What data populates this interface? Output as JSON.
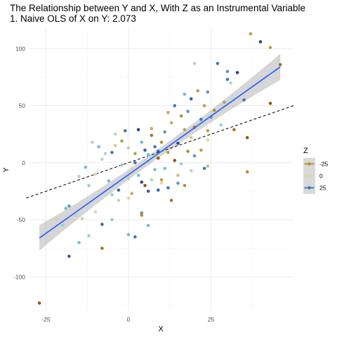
{
  "chart_data": {
    "type": "scatter",
    "title": "The Relationship between Y and X, With Z as an Instrumental Variable",
    "subtitle": "1. Naive OLS of  X on Y: 2.073",
    "xlabel": "X",
    "ylabel": "Y",
    "xlim": [
      -30,
      50
    ],
    "ylim": [
      -130,
      118
    ],
    "x_ticks": [
      -25,
      0,
      25
    ],
    "y_ticks": [
      -100,
      -50,
      0,
      50,
      100
    ],
    "grid": true,
    "legend": {
      "title": "Z",
      "placement": "right",
      "entries": [
        {
          "label": "-25",
          "color": "#b8902a"
        },
        {
          "label": "0",
          "color": "#dcd8a0"
        },
        {
          "label": "25",
          "color": "#3b78b4"
        }
      ]
    },
    "color_scale": {
      "low": -40,
      "high": 40
    },
    "fit_line": {
      "x": [
        -27,
        46
      ],
      "y": [
        -66,
        84
      ],
      "color": "#3366ff"
    },
    "naive_line": {
      "x": [
        -31,
        50
      ],
      "y": [
        -31,
        50
      ],
      "color": "#000000",
      "style": "dashed"
    },
    "points": [
      {
        "x": -27,
        "y": -123,
        "z": -35
      },
      {
        "x": -18,
        "y": -82,
        "z": 30
      },
      {
        "x": -8,
        "y": -75,
        "z": -30
      },
      {
        "x": -15,
        "y": -70,
        "z": 15
      },
      {
        "x": -12,
        "y": -64,
        "z": 10
      },
      {
        "x": -20,
        "y": -55,
        "z": 10
      },
      {
        "x": -18,
        "y": -38,
        "z": 20
      },
      {
        "x": -16,
        "y": -46,
        "z": 5
      },
      {
        "x": -14,
        "y": -49,
        "z": 5
      },
      {
        "x": -10,
        "y": -43,
        "z": 0
      },
      {
        "x": -8,
        "y": -54,
        "z": 28
      },
      {
        "x": -5,
        "y": -50,
        "z": 10
      },
      {
        "x": 0,
        "y": -63,
        "z": 15
      },
      {
        "x": 2,
        "y": -65,
        "z": 25
      },
      {
        "x": -3,
        "y": -33,
        "z": 5
      },
      {
        "x": 0,
        "y": -31,
        "z": 0
      },
      {
        "x": 4,
        "y": -44,
        "z": 20
      },
      {
        "x": 4,
        "y": -46,
        "z": -25
      },
      {
        "x": 6,
        "y": -55,
        "z": 15
      },
      {
        "x": -15,
        "y": -12,
        "z": 5
      },
      {
        "x": -12,
        "y": -20,
        "z": 10
      },
      {
        "x": -10,
        "y": -10,
        "z": 0
      },
      {
        "x": -8,
        "y": 3,
        "z": 5
      },
      {
        "x": -6,
        "y": -16,
        "z": 15
      },
      {
        "x": -5,
        "y": -28,
        "z": 10
      },
      {
        "x": -3,
        "y": -24,
        "z": 28
      },
      {
        "x": -2,
        "y": -2,
        "z": 10
      },
      {
        "x": 0,
        "y": -14,
        "z": 5
      },
      {
        "x": 1,
        "y": -27,
        "z": -15
      },
      {
        "x": 2,
        "y": 0,
        "z": 25
      },
      {
        "x": 3,
        "y": -11,
        "z": 15
      },
      {
        "x": 4,
        "y": -17,
        "z": 35
      },
      {
        "x": 5,
        "y": -20,
        "z": -35
      },
      {
        "x": 6,
        "y": -25,
        "z": 30
      },
      {
        "x": 7,
        "y": -15,
        "z": 5
      },
      {
        "x": 8,
        "y": -6,
        "z": 15
      },
      {
        "x": 9,
        "y": -24,
        "z": 28
      },
      {
        "x": 10,
        "y": -15,
        "z": -20
      },
      {
        "x": 11,
        "y": -5,
        "z": 15
      },
      {
        "x": 12,
        "y": -22,
        "z": 25
      },
      {
        "x": 13,
        "y": -33,
        "z": -30
      },
      {
        "x": 15,
        "y": -18,
        "z": 20
      },
      {
        "x": 16,
        "y": -1,
        "z": 10
      },
      {
        "x": 17,
        "y": -20,
        "z": -25
      },
      {
        "x": 19,
        "y": -7,
        "z": 5
      },
      {
        "x": 20,
        "y": 6,
        "z": 20
      },
      {
        "x": 22,
        "y": 11,
        "z": -20
      },
      {
        "x": 24,
        "y": 20,
        "z": 0
      },
      {
        "x": 24,
        "y": -3,
        "z": -10
      },
      {
        "x": -9,
        "y": 14,
        "z": 15
      },
      {
        "x": -7,
        "y": 8,
        "z": 5
      },
      {
        "x": -5,
        "y": 9,
        "z": 25
      },
      {
        "x": -4,
        "y": 25,
        "z": 5
      },
      {
        "x": -2,
        "y": 19,
        "z": -20
      },
      {
        "x": 0,
        "y": 13,
        "z": 5
      },
      {
        "x": 2,
        "y": 8,
        "z": -20
      },
      {
        "x": 4,
        "y": 18,
        "z": 15
      },
      {
        "x": 5,
        "y": 11,
        "z": 30
      },
      {
        "x": 6,
        "y": 1,
        "z": 5
      },
      {
        "x": 7,
        "y": 24,
        "z": -30
      },
      {
        "x": 8,
        "y": 14,
        "z": 25
      },
      {
        "x": 9,
        "y": 4,
        "z": -35
      },
      {
        "x": 10,
        "y": 18,
        "z": -25
      },
      {
        "x": 11,
        "y": 27,
        "z": 20
      },
      {
        "x": 12,
        "y": 9,
        "z": -20
      },
      {
        "x": 13,
        "y": 35,
        "z": -15
      },
      {
        "x": 14,
        "y": 2,
        "z": -35
      },
      {
        "x": 15,
        "y": 17,
        "z": 35
      },
      {
        "x": 16,
        "y": 41,
        "z": -25
      },
      {
        "x": 17,
        "y": 29,
        "z": -20
      },
      {
        "x": 18,
        "y": 45,
        "z": 20
      },
      {
        "x": 19,
        "y": 56,
        "z": 30
      },
      {
        "x": 20,
        "y": 31,
        "z": -30
      },
      {
        "x": 21,
        "y": 63,
        "z": -20
      },
      {
        "x": 22,
        "y": 38,
        "z": 25
      },
      {
        "x": 23,
        "y": 50,
        "z": -20
      },
      {
        "x": 24,
        "y": 28,
        "z": -20
      },
      {
        "x": 26,
        "y": 46,
        "z": -25
      },
      {
        "x": 28,
        "y": 33,
        "z": 10
      },
      {
        "x": 29,
        "y": 53,
        "z": -20
      },
      {
        "x": 30,
        "y": 73,
        "z": 25
      },
      {
        "x": 32,
        "y": 29,
        "z": -30
      },
      {
        "x": 33,
        "y": 79,
        "z": 35
      },
      {
        "x": 35,
        "y": 55,
        "z": 25
      },
      {
        "x": 36,
        "y": 22,
        "z": -35
      },
      {
        "x": 36,
        "y": -8,
        "z": -25
      },
      {
        "x": 37,
        "y": 113,
        "z": -20
      },
      {
        "x": 40,
        "y": 106,
        "z": 35
      },
      {
        "x": 43,
        "y": 101,
        "z": -20
      },
      {
        "x": 43,
        "y": 52,
        "z": -35
      },
      {
        "x": 46,
        "y": 86,
        "z": -30
      },
      {
        "x": 27,
        "y": 87,
        "z": 25
      },
      {
        "x": 24,
        "y": 62,
        "z": 20
      },
      {
        "x": 17,
        "y": 60,
        "z": 15
      },
      {
        "x": 20,
        "y": 87,
        "z": 5
      },
      {
        "x": 30,
        "y": 80,
        "z": 20
      },
      {
        "x": 31,
        "y": 70,
        "z": 5
      },
      {
        "x": 14,
        "y": 50,
        "z": 25
      },
      {
        "x": 12,
        "y": 44,
        "z": -15
      },
      {
        "x": 7,
        "y": 30,
        "z": -15
      },
      {
        "x": 3,
        "y": 29,
        "z": 35
      },
      {
        "x": -1,
        "y": 28,
        "z": 25
      },
      {
        "x": -4,
        "y": 15,
        "z": -5
      },
      {
        "x": 1,
        "y": -5,
        "z": 0
      },
      {
        "x": -11,
        "y": 18,
        "z": 5
      },
      {
        "x": -13,
        "y": -4,
        "z": 15
      },
      {
        "x": 9,
        "y": 10,
        "z": 30
      },
      {
        "x": 15,
        "y": -11,
        "z": -10
      },
      {
        "x": 6,
        "y": 7,
        "z": 15
      },
      {
        "x": 19,
        "y": 22,
        "z": -5
      },
      {
        "x": 25,
        "y": 40,
        "z": 20
      },
      {
        "x": 23,
        "y": -5,
        "z": 25
      },
      {
        "x": 18,
        "y": 10,
        "z": -25
      },
      {
        "x": 10,
        "y": -18,
        "z": 0
      },
      {
        "x": -19,
        "y": -40,
        "z": 15
      },
      {
        "x": -22,
        "y": -48,
        "z": 0
      }
    ]
  }
}
